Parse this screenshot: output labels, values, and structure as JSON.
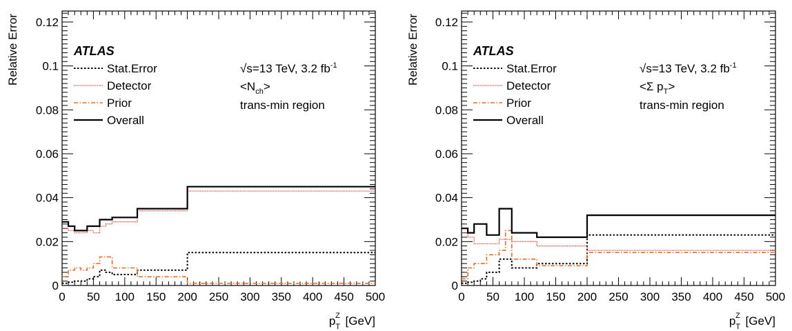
{
  "chart_data": [
    {
      "type": "line",
      "step": true,
      "ylabel": "Relative Error",
      "xlabel_main": "p",
      "xlabel_sub": "T",
      "xlabel_sup": "Z",
      "xlabel_unit": "[GeV]",
      "xlim": [
        0,
        500
      ],
      "ylim": [
        0,
        0.125
      ],
      "xticks": [
        0,
        50,
        100,
        150,
        200,
        250,
        300,
        350,
        400,
        450,
        500
      ],
      "xtick_labels": [
        "0",
        "50",
        "100",
        "150",
        "200",
        "250",
        "300",
        "350",
        "400",
        "450",
        "500"
      ],
      "yticks": [
        0,
        0.02,
        0.04,
        0.06,
        0.08,
        0.1,
        0.12
      ],
      "ytick_labels": [
        "0",
        "0.02",
        "0.04",
        "0.06",
        "0.08",
        "0.1",
        "0.12"
      ],
      "grid": false,
      "legend_position": "top-left",
      "atlas": "ATLAS",
      "energy": "√s=13 TeV, 3.2 fb",
      "energy_sup": "-1",
      "observable_main": "<N",
      "observable_sub": "ch",
      "observable_end": ">",
      "region": "trans-min region",
      "bin_edges": [
        0,
        10,
        20,
        30,
        40,
        50,
        60,
        70,
        80,
        120,
        200,
        500
      ],
      "series": [
        {
          "name": "Stat.Error",
          "color": "#000000",
          "dash": "dotted",
          "values": [
            0.001,
            0.0015,
            0.002,
            0.002,
            0.003,
            0.004,
            0.007,
            0.006,
            0.005,
            0.007,
            0.015
          ]
        },
        {
          "name": "Detector",
          "color": "#e8372c",
          "dash": "dotted-fine",
          "values": [
            0.026,
            0.025,
            0.024,
            0.024,
            0.025,
            0.024,
            0.027,
            0.028,
            0.029,
            0.034,
            0.043
          ]
        },
        {
          "name": "Prior",
          "color": "#f26b1d",
          "dash": "dashdot",
          "values": [
            0.004,
            0.007,
            0.008,
            0.007,
            0.008,
            0.01,
            0.013,
            0.013,
            0.008,
            0.004,
            0.001
          ]
        },
        {
          "name": "Overall",
          "color": "#000000",
          "dash": "solid",
          "values": [
            0.029,
            0.027,
            0.025,
            0.025,
            0.027,
            0.027,
            0.03,
            0.03,
            0.031,
            0.035,
            0.045
          ]
        }
      ]
    },
    {
      "type": "line",
      "step": true,
      "ylabel": "Relative Error",
      "xlabel_main": "p",
      "xlabel_sub": "T",
      "xlabel_sup": "Z",
      "xlabel_unit": "[GeV]",
      "xlim": [
        0,
        500
      ],
      "ylim": [
        0,
        0.125
      ],
      "xticks": [
        0,
        50,
        100,
        150,
        200,
        250,
        300,
        350,
        400,
        450,
        500
      ],
      "xtick_labels": [
        "0",
        "50",
        "100",
        "150",
        "200",
        "250",
        "300",
        "350",
        "400",
        "450",
        "500"
      ],
      "yticks": [
        0,
        0.02,
        0.04,
        0.06,
        0.08,
        0.1,
        0.12
      ],
      "ytick_labels": [
        "0",
        "0.02",
        "0.04",
        "0.06",
        "0.08",
        "0.1",
        "0.12"
      ],
      "grid": false,
      "legend_position": "top-left",
      "atlas": "ATLAS",
      "energy": "√s=13 TeV, 3.2 fb",
      "energy_sup": "-1",
      "observable_main": "<Σ p",
      "observable_sub": "T",
      "observable_end": ">",
      "region": "trans-min region",
      "bin_edges": [
        0,
        10,
        20,
        30,
        40,
        50,
        60,
        70,
        80,
        120,
        200,
        500
      ],
      "series": [
        {
          "name": "Stat.Error",
          "color": "#000000",
          "dash": "dotted",
          "values": [
            0.001,
            0.0015,
            0.002,
            0.003,
            0.006,
            0.006,
            0.012,
            0.012,
            0.008,
            0.01,
            0.023
          ]
        },
        {
          "name": "Detector",
          "color": "#e8372c",
          "dash": "dotted-fine",
          "values": [
            0.024,
            0.022,
            0.019,
            0.019,
            0.019,
            0.019,
            0.021,
            0.021,
            0.02,
            0.018,
            0.016
          ]
        },
        {
          "name": "Prior",
          "color": "#f26b1d",
          "dash": "dashdot",
          "values": [
            0.003,
            0.008,
            0.01,
            0.01,
            0.014,
            0.014,
            0.016,
            0.025,
            0.012,
            0.009,
            0.015
          ]
        },
        {
          "name": "Overall",
          "color": "#000000",
          "dash": "solid",
          "values": [
            0.026,
            0.024,
            0.028,
            0.028,
            0.023,
            0.023,
            0.035,
            0.035,
            0.024,
            0.022,
            0.032
          ]
        }
      ]
    }
  ]
}
